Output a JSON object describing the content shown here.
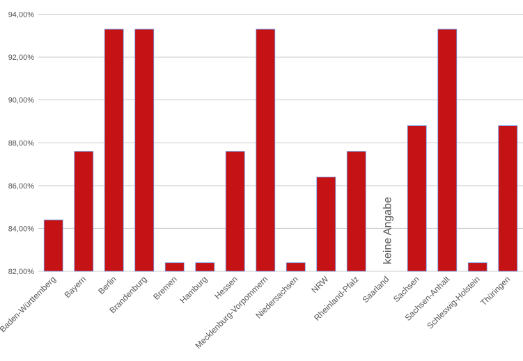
{
  "chart_data": {
    "type": "bar",
    "title": "",
    "xlabel": "",
    "ylabel": "",
    "ylim": [
      82,
      94
    ],
    "yticks": [
      82,
      84,
      86,
      88,
      90,
      92,
      94
    ],
    "ytick_labels": [
      "82,00%",
      "84,00%",
      "86,00%",
      "88,00%",
      "90,00%",
      "92,00%",
      "94,00%"
    ],
    "grid": true,
    "bar_color": "#c51214",
    "bar_edge_color": "#6f9de8",
    "categories": [
      "Baden-Württemberg",
      "Bayern",
      "Berlin",
      "Brandenburg",
      "Bremen",
      "Hamburg",
      "Hessen",
      "Mecklenburg-Vorpommern",
      "Niedersachsen",
      "NRW",
      "Rheinland-Pfalz",
      "Saarland",
      "Sachsen",
      "Sachsen-Anhalt",
      "Schleswig-Holstein",
      "Thüringen"
    ],
    "values": [
      84.4,
      87.6,
      93.3,
      93.3,
      82.4,
      82.4,
      87.6,
      93.3,
      82.4,
      86.4,
      87.6,
      null,
      88.8,
      93.3,
      82.4,
      88.8
    ],
    "annotations": [
      {
        "category": "Saarland",
        "text": "keine Angabe"
      }
    ]
  }
}
